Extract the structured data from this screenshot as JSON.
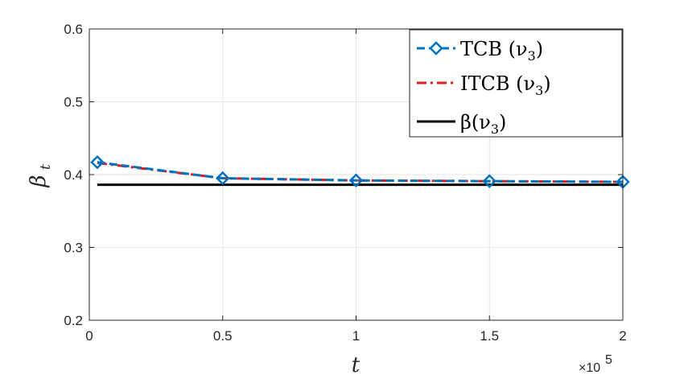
{
  "chart_data": {
    "type": "line",
    "xlabel": "t",
    "ylabel": "β",
    "ylabel_subscript": "t",
    "x_multiplier": "×10",
    "x_multiplier_exp": "5",
    "xlim": [
      0,
      2
    ],
    "ylim": [
      0.2,
      0.6
    ],
    "xticks": [
      0,
      0.5,
      1,
      1.5,
      2
    ],
    "xtick_labels": [
      "0",
      "0.5",
      "1",
      "1.5",
      "2"
    ],
    "yticks": [
      0.2,
      0.3,
      0.4,
      0.5,
      0.6
    ],
    "ytick_labels": [
      "0.2",
      "0.3",
      "0.4",
      "0.5",
      "0.6"
    ],
    "grid": true,
    "legend_position": "top-right",
    "series": [
      {
        "name": "TCB (ν3)",
        "name_main": "TCB (ν",
        "name_sub": "3",
        "name_end": ")",
        "color": "#0072BD",
        "style": "dashed-diamond",
        "x": [
          0.03,
          0.5,
          1.0,
          1.5,
          2.0
        ],
        "y": [
          0.417,
          0.395,
          0.392,
          0.391,
          0.39
        ]
      },
      {
        "name": "ITCB (ν3)",
        "name_main": "ITCB (ν",
        "name_sub": "3",
        "name_end": ")",
        "color": "#E31A1C",
        "style": "dashdot",
        "x": [
          0.03,
          0.5,
          1.0,
          1.5,
          2.0
        ],
        "y": [
          0.416,
          0.395,
          0.392,
          0.391,
          0.39
        ]
      },
      {
        "name": "β(ν3)",
        "name_main": "β(ν",
        "name_sub": "3",
        "name_end": ")",
        "color": "#000000",
        "style": "solid",
        "x": [
          0.03,
          2.0
        ],
        "y": [
          0.386,
          0.386
        ]
      }
    ]
  }
}
